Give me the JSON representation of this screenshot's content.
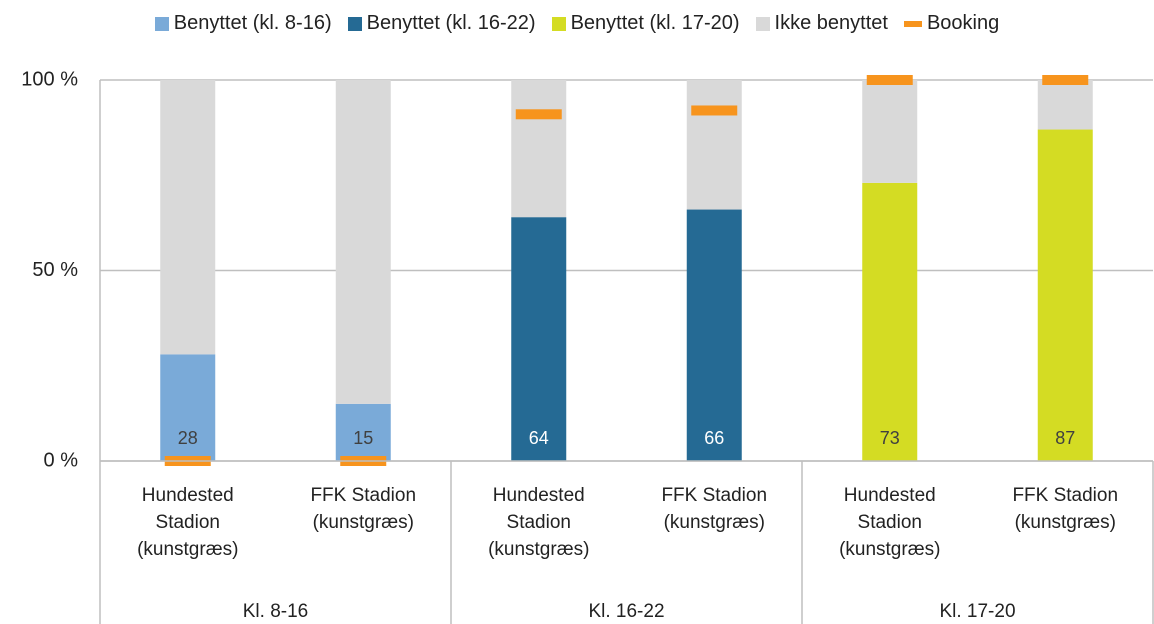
{
  "chart_data": {
    "type": "stacked_bar",
    "categories": [
      "Hundested Stadion (kunstgræs)",
      "FFK Stadion (kunstgræs)",
      "Hundested Stadion (kunstgræs)",
      "FFK Stadion (kunstgræs)",
      "Hundested Stadion (kunstgræs)",
      "FFK Stadion (kunstgræs)"
    ],
    "groups": [
      {
        "name": "Kl. 8-16",
        "size": 2
      },
      {
        "name": "Kl. 16-22",
        "size": 2
      },
      {
        "name": "Kl. 17-20",
        "size": 2
      }
    ],
    "series": [
      {
        "name": "Benyttet (kl. 8-16)",
        "color": "#7aaad8",
        "labels": true,
        "values": [
          28,
          15,
          null,
          null,
          null,
          null
        ]
      },
      {
        "name": "Benyttet (kl. 16-22)",
        "color": "#256a94",
        "labels": true,
        "values": [
          null,
          null,
          64,
          66,
          null,
          null
        ]
      },
      {
        "name": "Benyttet (kl. 17-20)",
        "color": "#d4dc23",
        "labels": true,
        "values": [
          null,
          null,
          null,
          null,
          73,
          87
        ]
      },
      {
        "name": "Ikke benyttet",
        "color": "#d9d9d9",
        "labels": false,
        "values": [
          72,
          85,
          36,
          34,
          27,
          13
        ]
      },
      {
        "name": "Booking",
        "color": "#f7941d",
        "kind": "marker",
        "values": [
          0,
          0,
          91,
          92,
          100,
          100
        ]
      }
    ],
    "ylim": [
      0,
      100
    ],
    "yticks": [
      {
        "value": 0,
        "label": "0 %"
      },
      {
        "value": 50,
        "label": "50 %"
      },
      {
        "value": 100,
        "label": "100 %"
      }
    ],
    "grid": true
  }
}
